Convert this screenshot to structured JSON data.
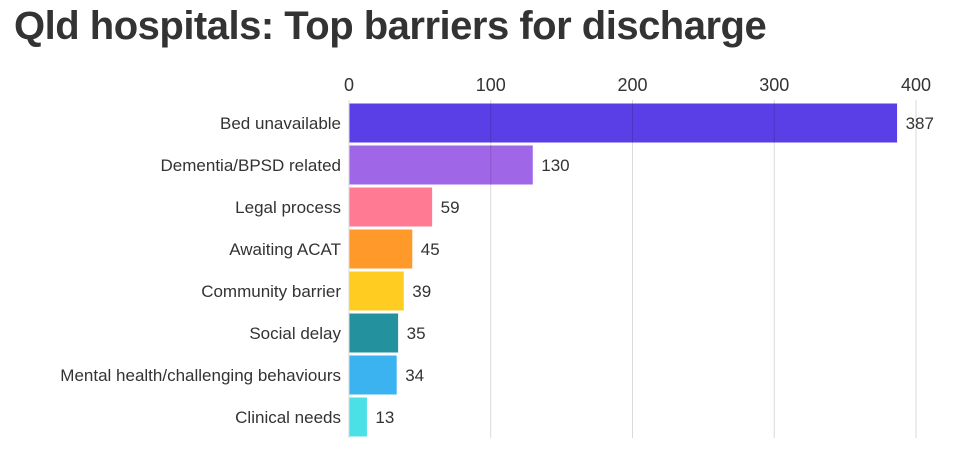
{
  "chart_data": {
    "type": "bar",
    "orientation": "horizontal",
    "title": "Qld hospitals: Top barriers for discharge",
    "categories": [
      "Bed unavailable",
      "Dementia/BPSD related",
      "Legal process",
      "Awaiting ACAT",
      "Community barrier",
      "Social delay",
      "Mental health/challenging behaviours",
      "Clinical needs"
    ],
    "values": [
      387,
      130,
      59,
      45,
      39,
      35,
      34,
      13
    ],
    "colors": [
      "#5a3fe6",
      "#a066e8",
      "#ff7a92",
      "#ff9a2a",
      "#ffcc22",
      "#23919e",
      "#3ab3f0",
      "#4ae0e6"
    ],
    "xlim": [
      0,
      400
    ],
    "x_ticks": [
      0,
      100,
      200,
      300,
      400
    ],
    "x_axis_position": "top",
    "grid": true,
    "data_labels": true
  }
}
